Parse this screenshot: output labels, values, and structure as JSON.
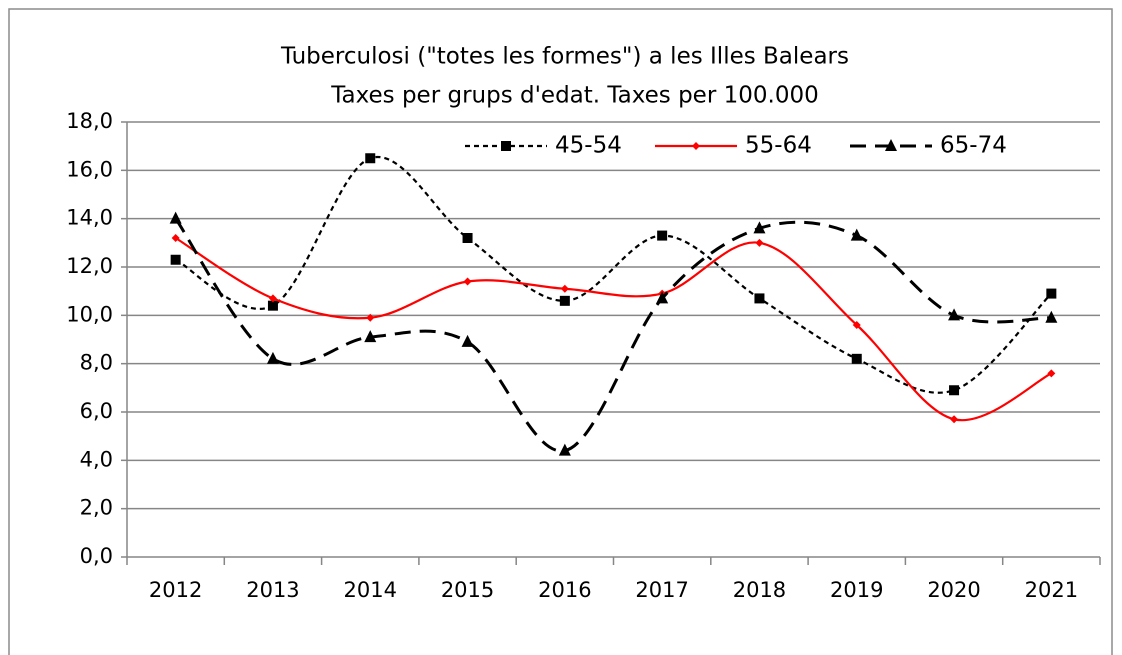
{
  "chart_data": {
    "type": "line",
    "title": "Tuberculosi (\"totes les formes\") a les Illes Balears",
    "subtitle": "Taxes per grups d'edat. Taxes per 100.000",
    "categories": [
      "2012",
      "2013",
      "2014",
      "2015",
      "2016",
      "2017",
      "2018",
      "2019",
      "2020",
      "2021"
    ],
    "series": [
      {
        "name": "45-54",
        "color": "#000000",
        "marker": "square",
        "dash": "dotted",
        "values": [
          12.3,
          10.4,
          16.5,
          13.2,
          10.6,
          13.3,
          10.7,
          8.2,
          6.9,
          10.9
        ]
      },
      {
        "name": "55-64",
        "color": "#ff0000",
        "marker": "diamond",
        "dash": "solid",
        "values": [
          13.2,
          10.7,
          9.9,
          11.4,
          11.1,
          10.9,
          13.0,
          9.6,
          5.7,
          7.6
        ]
      },
      {
        "name": "65-74",
        "color": "#000000",
        "marker": "triangle",
        "dash": "dashed",
        "values": [
          14.0,
          8.2,
          9.1,
          8.9,
          4.4,
          10.7,
          13.6,
          13.3,
          10.0,
          9.9
        ]
      }
    ],
    "ylim": [
      0,
      18
    ],
    "yticks": [
      {
        "value": 0,
        "label": "0,0"
      },
      {
        "value": 2,
        "label": "2,0"
      },
      {
        "value": 4,
        "label": "4,0"
      },
      {
        "value": 6,
        "label": "6,0"
      },
      {
        "value": 8,
        "label": "8,0"
      },
      {
        "value": 10,
        "label": "10,0"
      },
      {
        "value": 12,
        "label": "12,0"
      },
      {
        "value": 14,
        "label": "14,0"
      },
      {
        "value": 16,
        "label": "16,0"
      },
      {
        "value": 18,
        "label": "18,0"
      }
    ],
    "grid": true,
    "legend": "top-right",
    "smooth": true
  }
}
